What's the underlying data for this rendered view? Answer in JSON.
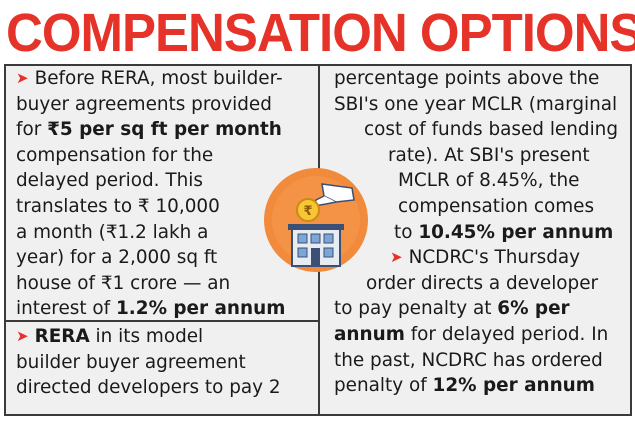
{
  "title": "COMPENSATION OPTIONS",
  "left_block_1": {
    "lines": [
      "Before RERA, most builder-",
      "buyer agreements provided",
      "for ",
      "compensation for the",
      "delayed period. This",
      "translates to ₹ 10,000",
      "a month (₹1.2 lakh a",
      "year) for a 2,000 sq ft",
      "house of ₹1 crore — an",
      "interest of "
    ],
    "bold_rate": "₹5 per sq ft per month",
    "bold_interest": "1.2% per annum"
  },
  "left_block_2": {
    "bold_rera": "RERA",
    "lines": [
      " in its model",
      "builder buyer agreement",
      "directed developers to pay 2"
    ]
  },
  "right_block_1": {
    "lines": [
      "percentage points above the",
      "SBI's one year MCLR (marginal",
      "cost of funds based lending",
      "rate). At SBI's present",
      "MCLR of 8.45%, the",
      "compensation comes",
      "to "
    ],
    "bold_result": "10.45% per annum"
  },
  "right_block_2": {
    "lines": [
      "NCDRC's Thursday",
      "order directs a developer",
      "to pay penalty at ",
      " for delayed period. In",
      "the past, NCDRC has ordered",
      "penalty of "
    ],
    "bold_6": "6% per",
    "bold_annum": "annum",
    "bold_12": "12% per annum"
  },
  "colors": {
    "accent": "#e63329",
    "panel": "#f0f0f0",
    "icon_circle": "#f28a3c"
  }
}
